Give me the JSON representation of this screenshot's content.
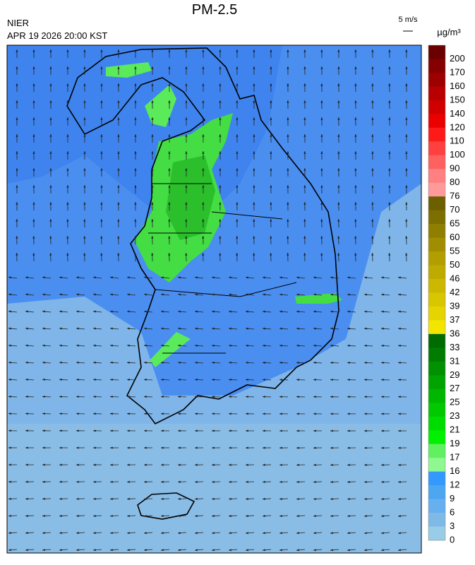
{
  "header": {
    "title": "PM-2.5",
    "agency": "NIER",
    "timestamp": "APR 19 2026 20:00 KST",
    "wind_scale": "5 m/s"
  },
  "colorbar": {
    "unit": "µg/m³",
    "labels": [
      "200",
      "170",
      "160",
      "150",
      "140",
      "120",
      "110",
      "100",
      "90",
      "80",
      "76",
      "70",
      "65",
      "60",
      "55",
      "50",
      "46",
      "42",
      "39",
      "37",
      "36",
      "33",
      "31",
      "29",
      "27",
      "25",
      "23",
      "21",
      "19",
      "17",
      "16",
      "12",
      "9",
      "6",
      "3",
      "0"
    ],
    "colors": [
      "#6b0000",
      "#850000",
      "#9e0000",
      "#b80000",
      "#d10000",
      "#eb0000",
      "#ff1a1a",
      "#ff4040",
      "#ff6060",
      "#ff8080",
      "#ff9a9a",
      "#6b5f00",
      "#7d6e00",
      "#8f7e00",
      "#a18e00",
      "#b39e00",
      "#bfaa00",
      "#ccb800",
      "#d9c600",
      "#e6d400",
      "#f2e600",
      "#006b00",
      "#007d00",
      "#009000",
      "#00a300",
      "#00b600",
      "#00c900",
      "#00dc00",
      "#00f000",
      "#60f060",
      "#90f890",
      "#3399ff",
      "#4da6f0",
      "#66b0f0",
      "#7fb9e6",
      "#99cce6"
    ]
  }
}
